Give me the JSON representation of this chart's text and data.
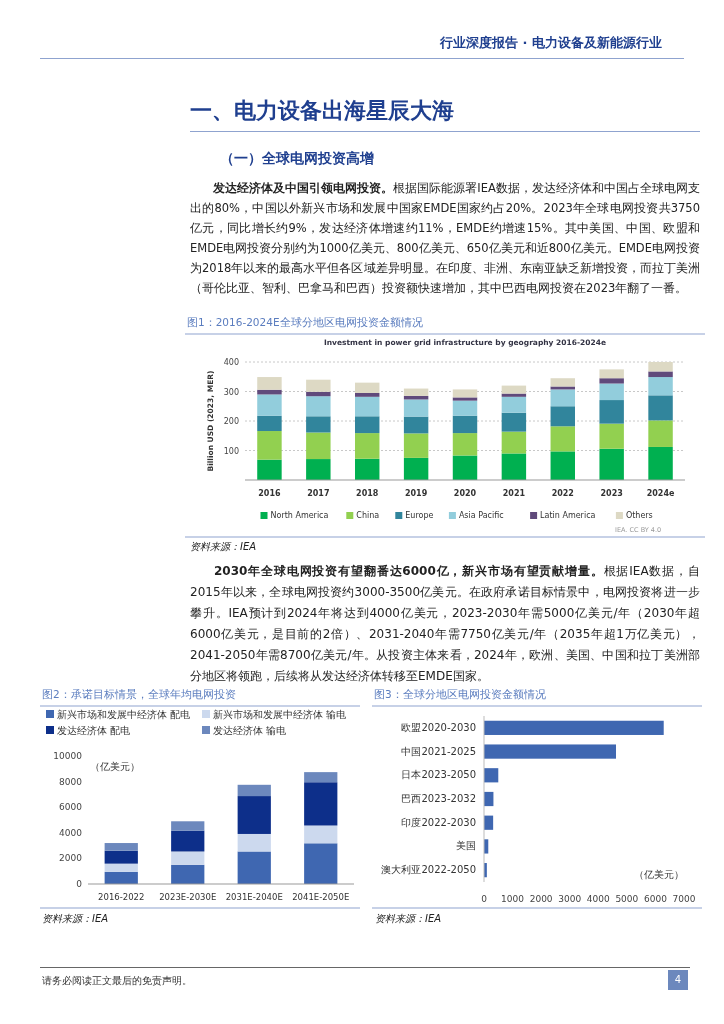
{
  "chart_data": [
    {
      "type": "bar",
      "title": "Investment in power grid infrastructure by geography 2016-2024e",
      "subtitle": "图1：2016-2024E全球分地区电网投资金额情况",
      "ylabel": "Billion USD (2023, MER)",
      "categories": [
        "2016",
        "2017",
        "2018",
        "2019",
        "2020",
        "2021",
        "2022",
        "2023",
        "2024e"
      ],
      "stacked": true,
      "ylim": [
        0,
        400
      ],
      "yticks": [
        100,
        200,
        300,
        400
      ],
      "grid": "y",
      "legend": "bottom",
      "series": [
        {
          "name": "North America",
          "color": "#00b050",
          "values": [
            69,
            71,
            72,
            75,
            83,
            90,
            97,
            106,
            112
          ]
        },
        {
          "name": "China",
          "color": "#92d050",
          "values": [
            97,
            90,
            87,
            83,
            76,
            74,
            85,
            85,
            90
          ]
        },
        {
          "name": "Europe",
          "color": "#31859c",
          "values": [
            52,
            55,
            57,
            57,
            59,
            64,
            68,
            80,
            85
          ]
        },
        {
          "name": "Asia Pacific",
          "color": "#92cddc",
          "values": [
            72,
            68,
            66,
            58,
            51,
            54,
            57,
            56,
            62
          ]
        },
        {
          "name": "Latin America",
          "color": "#604a7b",
          "values": [
            16,
            15,
            13,
            12,
            11,
            11,
            10,
            18,
            19
          ]
        },
        {
          "name": "Others",
          "color": "#ddd9c4",
          "values": [
            43,
            41,
            35,
            25,
            27,
            27,
            28,
            30,
            32
          ]
        }
      ],
      "annotations": [
        "行业深度报告 · 电力设备及新能源行业",
        "一、电力设备出海星辰大海",
        "（一）全球电网投资高增",
        "发达经济体及中国引领电网投资。",
        "根据国际能源署IEA数据，发达经济体和中国占全球电网支出的80%，中国以外新兴市场和发展中国家EMDE国家约占20%。2023年全球电网投资共3750亿元，同比增长约9%，发达经济体增速约11%，EMDE约增速15%。其中美国、中国、欧盟和EMDE电网投资分别约为1000亿美元、800亿美元、650亿美元和近800亿美元。EMDE电网投资为2018年以来的最高水平但各区域差异明显。在印度、非洲、东南亚缺乏新增投资，而拉丁美洲（哥伦比亚、智利、巴拿马和巴西）投资额快速增加，其中巴西电网投资在2023年翻了一番。",
        "IEA. CC BY 4.0",
        "资料来源：IEA"
      ]
    },
    {
      "type": "bar",
      "subtitle": "图2：承诺目标情景，全球年均电网投资",
      "categories": [
        "2016-2022",
        "2023E-2030E",
        "2031E-2040E",
        "2041E-2050E"
      ],
      "stacked": true,
      "ylim": [
        0,
        10000
      ],
      "yticks": [
        0,
        2000,
        4000,
        6000,
        8000,
        10000
      ],
      "legend": "top",
      "series": [
        {
          "name": "新兴市场和发展中经济体 配电",
          "color": "#3f67b1",
          "values": [
            950,
            1500,
            2540,
            3180
          ]
        },
        {
          "name": "新兴市场和发展中经济体 输电",
          "color": "#ccd9ee",
          "values": [
            640,
            1040,
            1370,
            1390
          ]
        },
        {
          "name": "发达经济体 配电",
          "color": "#0d2f8a",
          "values": [
            1010,
            1630,
            2960,
            3380
          ]
        },
        {
          "name": "发达经济体 输电",
          "color": "#6c88bd",
          "values": [
            600,
            730,
            880,
            790
          ]
        }
      ],
      "annotations": [
        "2030年全球电网投资有望翻番达6000亿，新兴市场有望贡献增量。",
        "根据IEA数据，自2015年以来，全球电网投资约3000-3500亿美元。在政府承诺目标情景中，电网投资将进一步攀升。IEA预计到2024年将达到4000亿美元，2023-2030年需5000亿美元/年（2030年超6000亿美元，是目前的2倍）、2031-2040年需7750亿美元/年（2035年超1万亿美元），2041-2050年需8700亿美元/年。从投资主体来看，2024年，欧洲、美国、中国和拉丁美洲部分地区将领跑，后续将从发达经济体转移至EMDE国家。",
        "（亿美元）",
        "资料来源：IEA"
      ]
    },
    {
      "type": "bar",
      "subtitle": "图3：全球分地区电网投资金额情况",
      "orientation": "horizontal",
      "categories": [
        "欧盟2020-2030",
        "中国2021-2025",
        "日本2023-2050",
        "巴西2023-2032",
        "印度2022-2030",
        "美国",
        "澳大利亚2022-2050"
      ],
      "values": [
        6290,
        4620,
        500,
        330,
        320,
        150,
        100
      ],
      "color": "#3f67b1",
      "xlim": [
        0,
        7000
      ],
      "xticks": [
        0,
        1000,
        2000,
        3000,
        4000,
        5000,
        6000,
        7000
      ],
      "annotations": [
        "（亿美元）",
        "资料来源：IEA",
        "请务必阅读正文最后的免责声明。",
        "4"
      ]
    }
  ]
}
